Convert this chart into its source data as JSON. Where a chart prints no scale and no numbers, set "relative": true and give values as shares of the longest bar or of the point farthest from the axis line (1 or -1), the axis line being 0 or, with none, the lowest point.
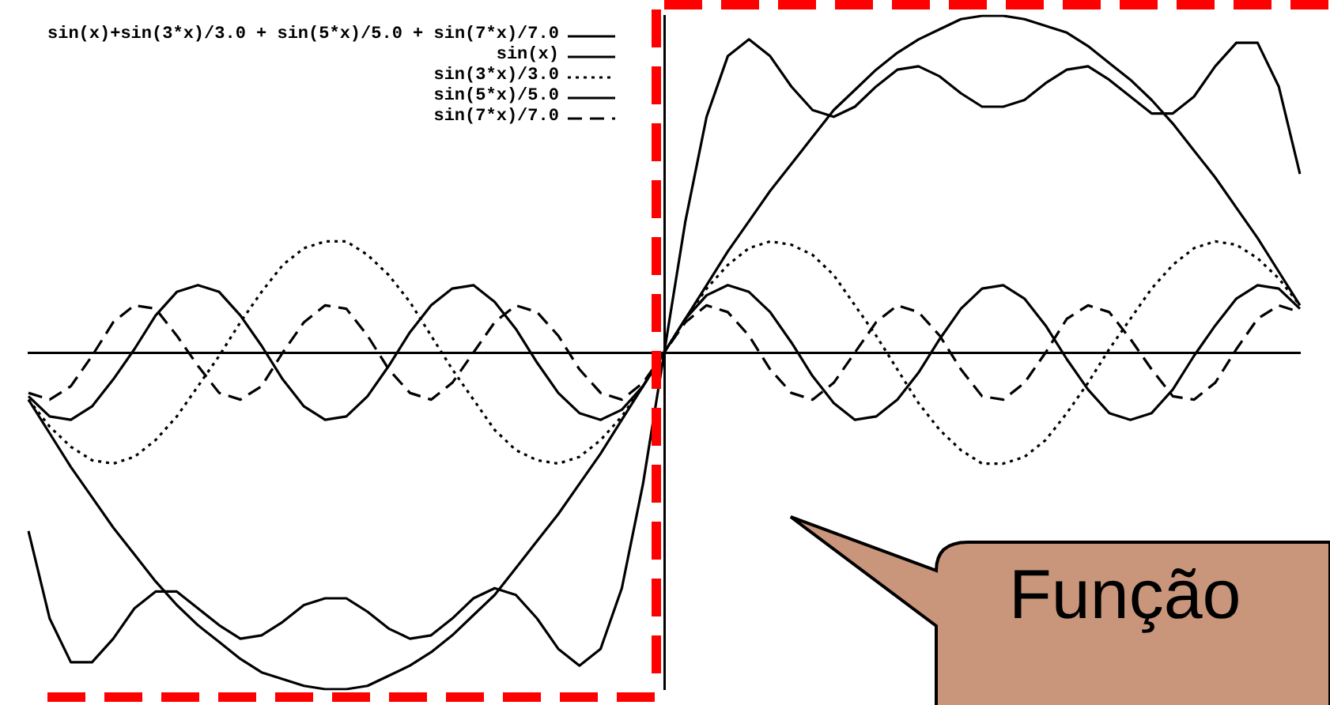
{
  "chart_data": {
    "type": "line",
    "relative": true,
    "legend": "top left",
    "grid": false,
    "categories": [
      null,
      null,
      null,
      null,
      null,
      null,
      null,
      null,
      null,
      null,
      null,
      null,
      null,
      null,
      null,
      null,
      null,
      null,
      null,
      null,
      null,
      null,
      null,
      null,
      null,
      null,
      null,
      null,
      null,
      null,
      null,
      null,
      null,
      null,
      null,
      null,
      null,
      null,
      null,
      null,
      null,
      null,
      null,
      null,
      null,
      null,
      null,
      null,
      null,
      null,
      null,
      null,
      null,
      null,
      null,
      null,
      null,
      null,
      null,
      null,
      null
    ],
    "series": [
      {
        "name": "sin(x)+sin(3*x)/3.0 + sin(5*x)/5.0 + sin(7*x)/7.0",
        "color": "#000000",
        "line_style": "solid",
        "values": [
          -0.53,
          -0.79,
          -0.92,
          -0.92,
          -0.85,
          -0.76,
          -0.71,
          -0.71,
          -0.76,
          -0.81,
          -0.85,
          -0.84,
          -0.8,
          -0.75,
          -0.73,
          -0.73,
          -0.77,
          -0.82,
          -0.85,
          -0.84,
          -0.79,
          -0.73,
          -0.7,
          -0.72,
          -0.79,
          -0.88,
          -0.93,
          -0.88,
          -0.7,
          -0.39,
          0,
          0.39,
          0.7,
          0.88,
          0.93,
          0.88,
          0.79,
          0.72,
          0.7,
          0.73,
          0.79,
          0.84,
          0.85,
          0.82,
          0.77,
          0.73,
          0.73,
          0.75,
          0.8,
          0.84,
          0.85,
          0.81,
          0.76,
          0.71,
          0.71,
          0.76,
          0.85,
          0.92,
          0.92,
          0.79,
          0.53
        ]
      },
      {
        "name": "sin(x)",
        "color": "#000000",
        "line_style": "solid",
        "values": [
          -0.14,
          -0.24,
          -0.34,
          -0.43,
          -0.52,
          -0.6,
          -0.68,
          -0.75,
          -0.81,
          -0.86,
          -0.91,
          -0.95,
          -0.97,
          -0.99,
          -1.0,
          -1.0,
          -0.99,
          -0.96,
          -0.93,
          -0.89,
          -0.84,
          -0.78,
          -0.72,
          -0.64,
          -0.56,
          -0.48,
          -0.39,
          -0.3,
          -0.2,
          -0.1,
          0,
          0.1,
          0.2,
          0.3,
          0.39,
          0.48,
          0.56,
          0.64,
          0.72,
          0.78,
          0.84,
          0.89,
          0.93,
          0.96,
          0.99,
          1.0,
          1.0,
          0.99,
          0.97,
          0.95,
          0.91,
          0.86,
          0.81,
          0.75,
          0.68,
          0.6,
          0.52,
          0.43,
          0.34,
          0.24,
          0.14
        ]
      },
      {
        "name": "sin(3*x)/3.0",
        "color": "#000000",
        "line_style": "dotted",
        "values": [
          -0.14,
          -0.22,
          -0.28,
          -0.32,
          -0.33,
          -0.31,
          -0.26,
          -0.19,
          -0.1,
          -0.01,
          0.09,
          0.18,
          0.26,
          0.31,
          0.33,
          0.33,
          0.29,
          0.23,
          0.15,
          0.05,
          -0.05,
          -0.14,
          -0.23,
          -0.29,
          -0.32,
          -0.33,
          -0.31,
          -0.26,
          -0.19,
          -0.1,
          0,
          0.1,
          0.19,
          0.26,
          0.31,
          0.33,
          0.32,
          0.29,
          0.23,
          0.14,
          0.05,
          -0.05,
          -0.15,
          -0.23,
          -0.29,
          -0.33,
          -0.33,
          -0.31,
          -0.26,
          -0.18,
          -0.09,
          0.01,
          0.1,
          0.19,
          0.26,
          0.31,
          0.33,
          0.32,
          0.28,
          0.22,
          0.14
        ]
      },
      {
        "name": "sin(5*x)/5.0",
        "color": "#000000",
        "line_style": "solid",
        "values": [
          -0.13,
          -0.19,
          -0.2,
          -0.16,
          -0.08,
          0.01,
          0.11,
          0.18,
          0.2,
          0.18,
          0.11,
          0.02,
          -0.08,
          -0.16,
          -0.2,
          -0.19,
          -0.13,
          -0.04,
          0.06,
          0.14,
          0.19,
          0.2,
          0.15,
          0.07,
          -0.03,
          -0.12,
          -0.18,
          -0.2,
          -0.17,
          -0.1,
          0,
          0.1,
          0.17,
          0.2,
          0.18,
          0.12,
          0.03,
          -0.07,
          -0.15,
          -0.2,
          -0.19,
          -0.14,
          -0.06,
          0.04,
          0.13,
          0.19,
          0.2,
          0.16,
          0.08,
          -0.02,
          -0.11,
          -0.18,
          -0.2,
          -0.18,
          -0.11,
          -0.01,
          0.08,
          0.16,
          0.2,
          0.19,
          0.13
        ]
      },
      {
        "name": "sin(7*x)/7.0",
        "color": "#000000",
        "line_style": "dashed",
        "values": [
          -0.12,
          -0.14,
          -0.1,
          -0.01,
          0.09,
          0.14,
          0.13,
          0.05,
          -0.04,
          -0.12,
          -0.14,
          -0.1,
          0,
          0.09,
          0.14,
          0.13,
          0.05,
          -0.05,
          -0.12,
          -0.14,
          -0.09,
          0,
          0.09,
          0.14,
          0.12,
          0.05,
          -0.05,
          -0.12,
          -0.14,
          -0.09,
          0,
          0.09,
          0.14,
          0.12,
          0.05,
          -0.05,
          -0.12,
          -0.14,
          -0.09,
          0,
          0.09,
          0.14,
          0.12,
          0.05,
          -0.05,
          -0.13,
          -0.14,
          -0.09,
          0,
          0.1,
          0.14,
          0.12,
          0.04,
          -0.05,
          -0.13,
          -0.14,
          -0.09,
          0.01,
          0.1,
          0.14,
          0.12
        ]
      }
    ],
    "annotations": [
      "Função"
    ]
  }
}
